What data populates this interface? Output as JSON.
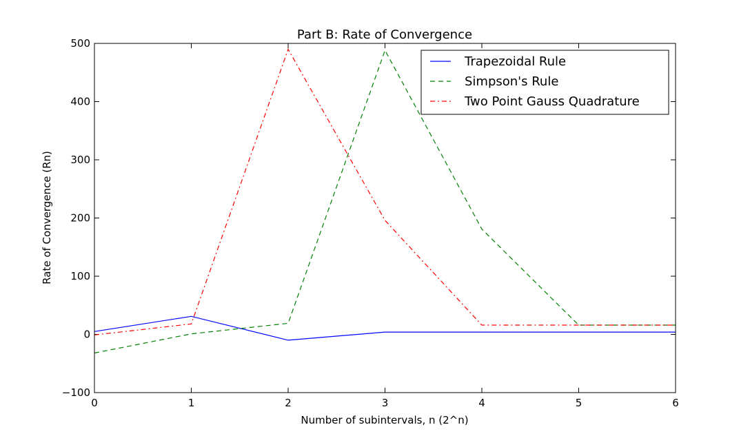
{
  "chart_data": {
    "type": "line",
    "title": "Part B: Rate of Convergence",
    "xlabel": "Number of subintervals, n (2^n)",
    "ylabel": "Rate of Convergence (Rn)",
    "xlim": [
      0,
      6
    ],
    "ylim": [
      -100,
      500
    ],
    "xticks": [
      0,
      1,
      2,
      3,
      4,
      5,
      6
    ],
    "yticks": [
      -100,
      0,
      100,
      200,
      300,
      400,
      500
    ],
    "x": [
      0,
      1,
      2,
      3,
      4,
      5,
      6
    ],
    "grid": false,
    "legend_position": "top-right",
    "series": [
      {
        "name": "Trapezoidal Rule",
        "values": [
          5,
          31,
          -10,
          4,
          4,
          4,
          4
        ],
        "color": "#0000ff",
        "linestyle": "solid"
      },
      {
        "name": "Simpson's Rule",
        "values": [
          -32,
          1,
          19,
          488,
          181,
          16,
          16
        ],
        "color": "#008000",
        "linestyle": "dashed"
      },
      {
        "name": "Two Point Gauss Quadrature",
        "values": [
          -1,
          18,
          490,
          196,
          16,
          16,
          16
        ],
        "color": "#ff0000",
        "linestyle": "dashdot"
      }
    ]
  }
}
